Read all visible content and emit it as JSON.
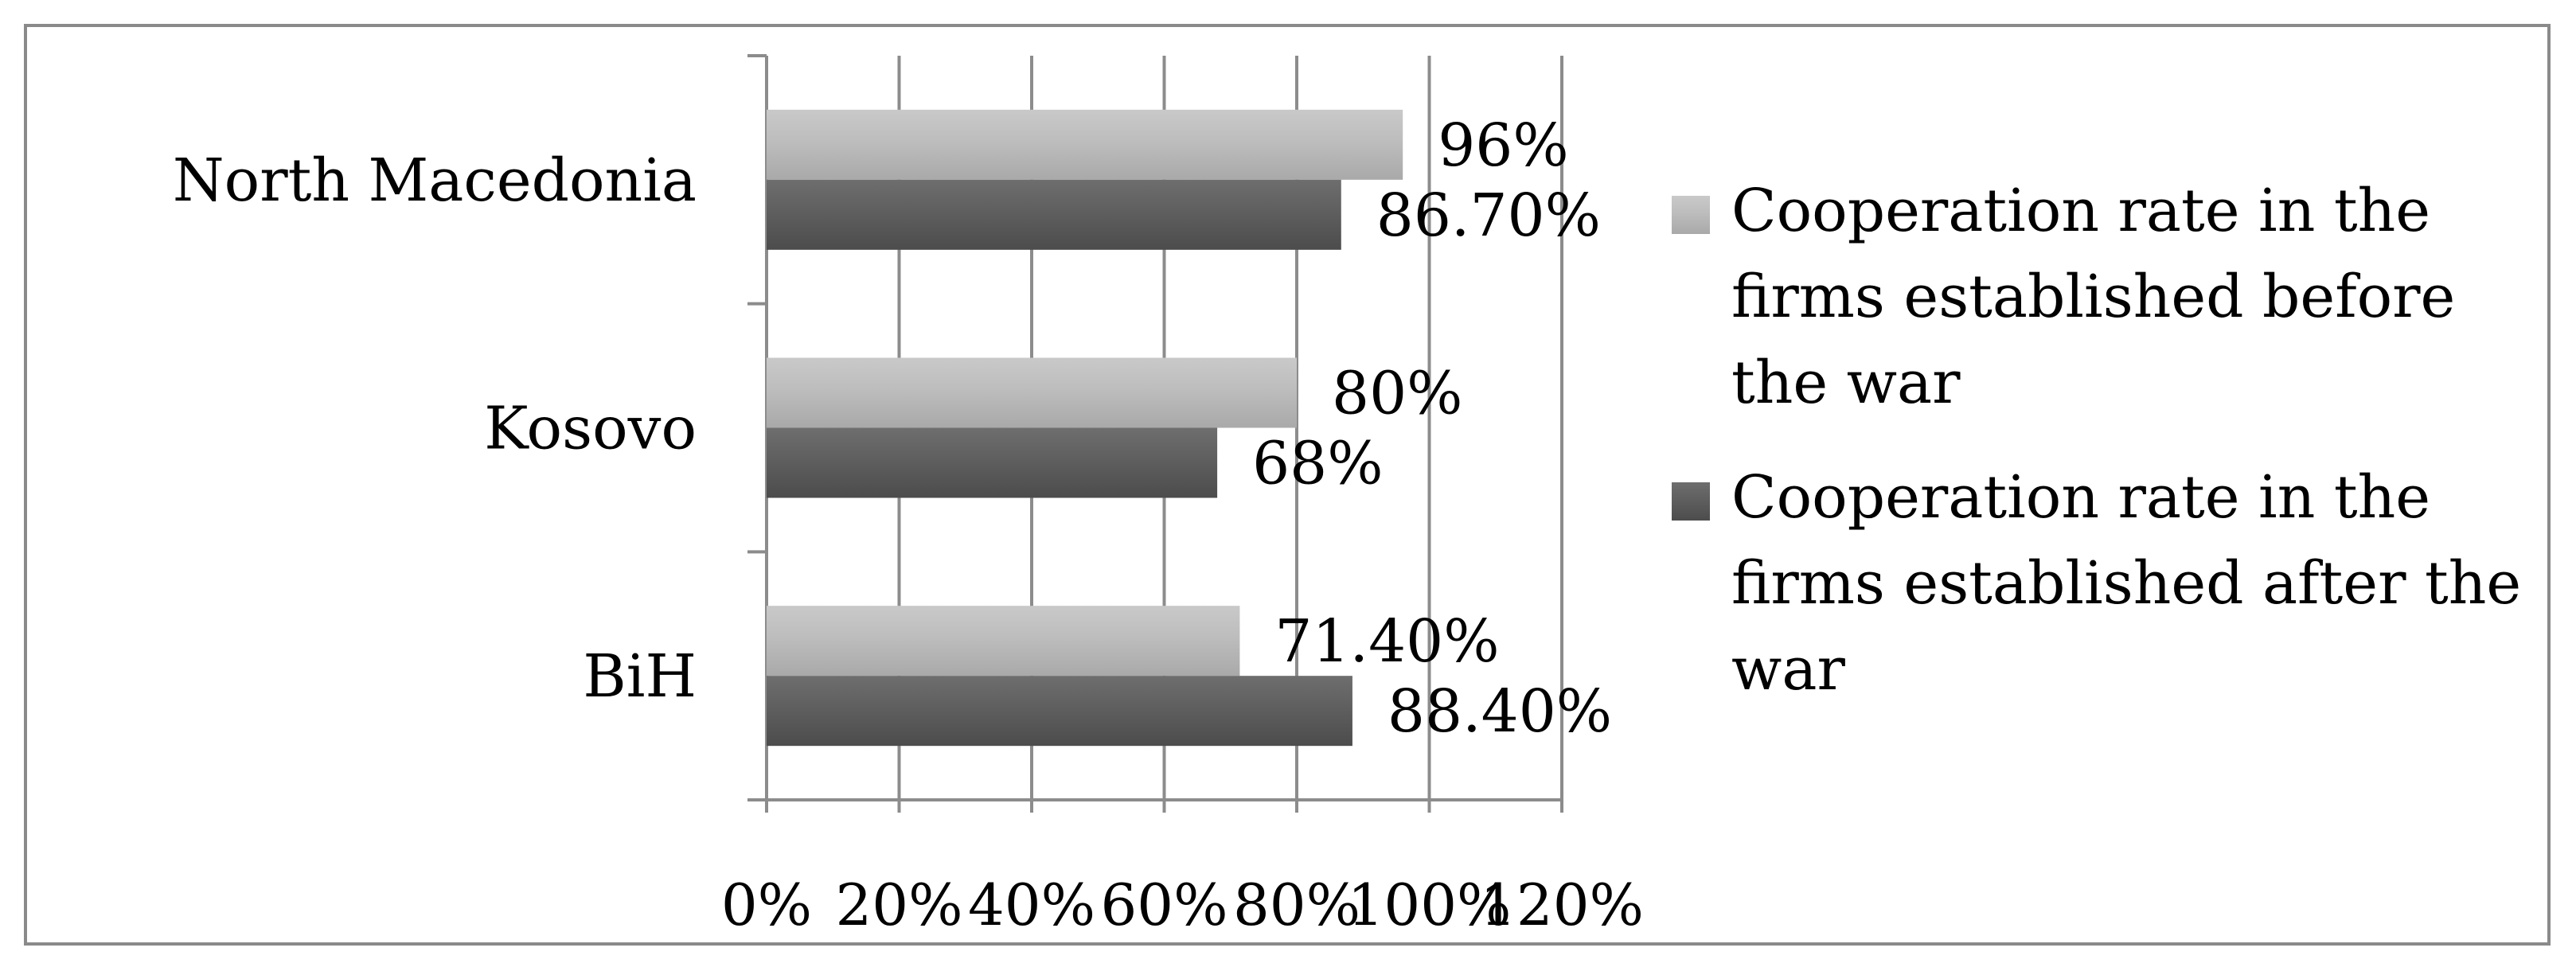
{
  "chart_data": {
    "type": "bar",
    "orientation": "horizontal",
    "categories": [
      "North Macedonia",
      "Kosovo",
      "BiH"
    ],
    "series": [
      {
        "name": "Cooperation rate in the firms established before the war",
        "values": [
          96,
          80,
          71.4
        ],
        "labels": [
          "96%",
          "80%",
          "71.40%"
        ],
        "color": "#b3b3b3"
      },
      {
        "name": "Cooperation rate in the firms established after the war",
        "values": [
          86.7,
          68,
          88.4
        ],
        "labels": [
          "86.70%",
          "68%",
          "88.40%"
        ],
        "color": "#5c5c5c"
      }
    ],
    "x_ticks": [
      "0%",
      "20%",
      "40%",
      "60%",
      "80%",
      "100%",
      "120%"
    ],
    "xlim": [
      0,
      120
    ],
    "grid": true,
    "legend_position": "right",
    "legend_lines": [
      [
        "Cooperation rate in the",
        "firms established before",
        "the war"
      ],
      [
        "Cooperation rate in the",
        "firms established after the",
        "war"
      ]
    ]
  }
}
